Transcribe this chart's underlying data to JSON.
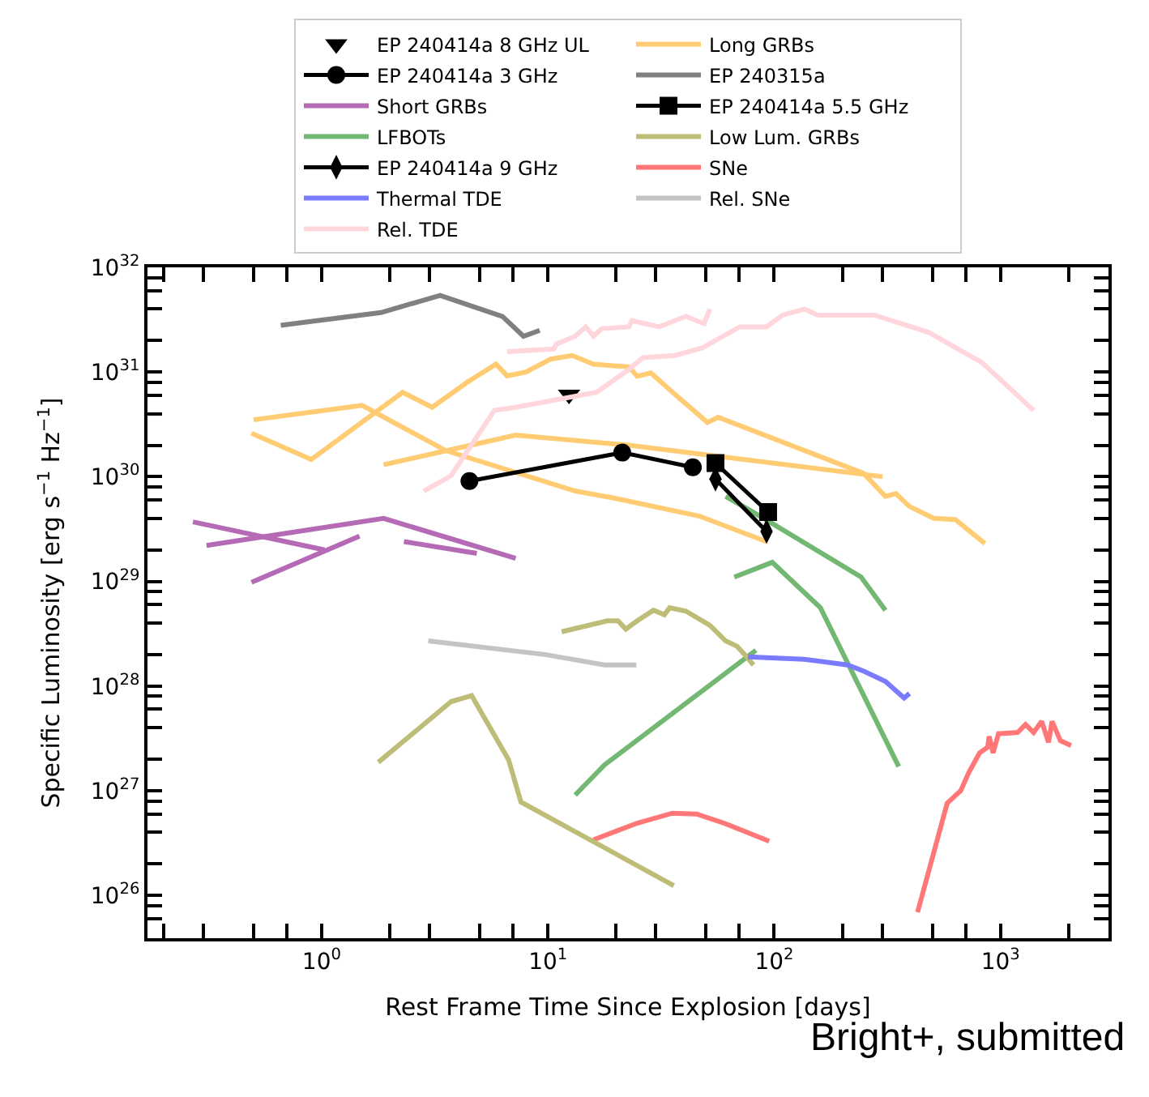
{
  "chart_data": {
    "type": "line",
    "xlabel": "Rest Frame Time Since Explosion [days]",
    "ylabel": "Specific Luminosity [erg s$^{−1}$ Hz$^{−1}$]",
    "log": "xy",
    "grid": false,
    "legend": "top",
    "xlim": [
      0.17,
      3000
    ],
    "ylim": [
      3.9e+25,
      1e+32
    ],
    "xticks": [
      {
        "value": 0.2,
        "label": null
      },
      {
        "value": 0.3,
        "label": null
      },
      {
        "value": 0.5,
        "label": null
      },
      {
        "value": 0.7,
        "label": null
      },
      {
        "value": 2,
        "label": null
      },
      {
        "value": 3,
        "label": null
      },
      {
        "value": 5,
        "label": null
      },
      {
        "value": 7,
        "label": null
      },
      {
        "value": 20,
        "label": null
      },
      {
        "value": 30,
        "label": null
      },
      {
        "value": 50,
        "label": null
      },
      {
        "value": 70,
        "label": null
      },
      {
        "value": 200,
        "label": null
      },
      {
        "value": 300,
        "label": null
      },
      {
        "value": 500,
        "label": null
      },
      {
        "value": 700,
        "label": null
      },
      {
        "value": 2000,
        "label": null
      },
      {
        "value": 3000,
        "label": null
      },
      {
        "value": 1,
        "label": "10$^{0}$"
      },
      {
        "value": 10,
        "label": "10$^{1}$"
      },
      {
        "value": 100,
        "label": "10$^{2}$"
      },
      {
        "value": 1000,
        "label": "10$^{3}$"
      }
    ],
    "yticks": [
      {
        "value": 4e+25,
        "label": null
      },
      {
        "value": 6e+25,
        "label": null
      },
      {
        "value": 8e+25,
        "label": null
      },
      {
        "value": 2e+26,
        "label": null
      },
      {
        "value": 4e+26,
        "label": null
      },
      {
        "value": 6e+26,
        "label": null
      },
      {
        "value": 8e+26,
        "label": null
      },
      {
        "value": 2e+27,
        "label": null
      },
      {
        "value": 4e+27,
        "label": null
      },
      {
        "value": 6e+27,
        "label": null
      },
      {
        "value": 8e+27,
        "label": null
      },
      {
        "value": 2e+28,
        "label": null
      },
      {
        "value": 4e+28,
        "label": null
      },
      {
        "value": 6e+28,
        "label": null
      },
      {
        "value": 8e+28,
        "label": null
      },
      {
        "value": 2e+29,
        "label": null
      },
      {
        "value": 4e+29,
        "label": null
      },
      {
        "value": 6e+29,
        "label": null
      },
      {
        "value": 8e+29,
        "label": null
      },
      {
        "value": 2e+30,
        "label": null
      },
      {
        "value": 4e+30,
        "label": null
      },
      {
        "value": 6e+30,
        "label": null
      },
      {
        "value": 8e+30,
        "label": null
      },
      {
        "value": 2e+31,
        "label": null
      },
      {
        "value": 4e+31,
        "label": null
      },
      {
        "value": 6e+31,
        "label": null
      },
      {
        "value": 8e+31,
        "label": null
      },
      {
        "value": 1e+26,
        "label": "10$^{26}$"
      },
      {
        "value": 1e+27,
        "label": "10$^{27}$"
      },
      {
        "value": 1e+28,
        "label": "10$^{28}$"
      },
      {
        "value": 1e+29,
        "label": "10$^{29}$"
      },
      {
        "value": 1e+30,
        "label": "10$^{30}$"
      },
      {
        "value": 1e+31,
        "label": "10$^{31}$"
      },
      {
        "value": 1e+32,
        "label": "10$^{32}$"
      }
    ],
    "annotations": [
      "Bright+, submitted"
    ],
    "series": [
      {
        "name": "EP 240414a 8 GHz UL",
        "type": "scatter",
        "marker": "triangle",
        "color": "#000000",
        "x": [
          12.4
        ],
        "values": [
          6.1e+30
        ]
      },
      {
        "name": "EP 240315a",
        "color": "#808080",
        "x": [
          0.66,
          1.83,
          3.34,
          6.3,
          7.8,
          9.2
        ],
        "values": [
          2.8e+31,
          3.7e+31,
          5.4e+31,
          3.4e+31,
          2.2e+31,
          2.5e+31
        ]
      },
      {
        "name": "LFBOTs",
        "color": "#72b872",
        "x": [
          13.2,
          17.8,
          83,
          null,
          66.6,
          98,
          160,
          355,
          null,
          61,
          90,
          242,
          310
        ],
        "values": [
          9.1e+26,
          1.77e+27,
          2.2e+28,
          null,
          1.1e+29,
          1.52e+29,
          5.6e+28,
          1.7e+27,
          null,
          6.5e+29,
          4e+29,
          1.1e+29,
          5.3e+28
        ]
      },
      {
        "name": "SNe",
        "color": "#ff7777",
        "x": [
          15.9,
          24.8,
          35.5,
          45.4,
          60,
          95,
          null,
          430,
          581,
          667,
          724,
          808,
          877,
          891,
          927,
          979,
          1190,
          1290,
          1400,
          1520,
          1630,
          1690,
          1840,
          2050
        ],
        "values": [
          3.4e+26,
          4.9e+26,
          6.1e+26,
          6e+26,
          4.9e+26,
          3.3e+26,
          null,
          6.9e+25,
          7.6e+26,
          1e+27,
          1.49e+27,
          2.3e+27,
          2.6e+27,
          3.3e+27,
          2.3e+27,
          3.5e+27,
          3.6e+27,
          4.3e+27,
          3.6e+27,
          4.6e+27,
          2.9e+27,
          4.6e+27,
          3e+27,
          2.7e+27
        ]
      },
      {
        "name": "Rel. SNe",
        "color": "#c4c4c4",
        "x": [
          2.96,
          9.7,
          17.8,
          24.6
        ],
        "values": [
          2.7e+28,
          2e+28,
          1.59e+28,
          1.59e+28
        ]
      },
      {
        "name": "Long GRBs",
        "color": "#ffcc73",
        "x": [
          0.5,
          1.51,
          3.53,
          13.2,
          20,
          46.7,
          92.5,
          null,
          0.49,
          0.9,
          2.28,
          3.08,
          4.4,
          5.9,
          6.6,
          8.0,
          10.3,
          12.8,
          15.9,
          22.8,
          24.8,
          28.5,
          36.5,
          50.7,
          56.5,
          248,
          310,
          345,
          396,
          507,
          631,
          853,
          null,
          1.88,
          7.2,
          22.8,
          301
        ],
        "values": [
          3.5e+30,
          4.8e+30,
          1.78e+30,
          7.3e+29,
          6.2e+29,
          4.2e+29,
          2.4e+29,
          null,
          2.6e+30,
          1.46e+30,
          6.4e+30,
          4.6e+30,
          8e+30,
          1.19e+31,
          9.2e+30,
          1e+31,
          1.33e+31,
          1.44e+31,
          1.19e+31,
          1.12e+31,
          9.1e+30,
          9.8e+30,
          6.1e+30,
          3.3e+30,
          3.7e+30,
          1.08e+30,
          6.5e+29,
          6.9e+29,
          5.2e+29,
          4e+29,
          3.9e+29,
          2.3e+29,
          null,
          1.3e+30,
          2.5e+30,
          2e+30,
          1e+30
        ]
      },
      {
        "name": "Short GRBs",
        "color": "#b46ab4",
        "x": [
          0.27,
          1.03,
          null,
          0.31,
          1.88,
          7.2,
          null,
          0.49,
          1.47,
          null,
          2.31,
          4.85
        ],
        "values": [
          3.7e+29,
          2e+29,
          null,
          2.2e+29,
          4e+29,
          1.66e+29,
          null,
          9.8e+28,
          2.7e+29,
          null,
          2.4e+29,
          1.85e+29
        ]
      },
      {
        "name": "Low Lum. GRBs",
        "color": "#bdbd78",
        "x": [
          1.78,
          3.73,
          4.6,
          6.7,
          7.6,
          36,
          null,
          11.5,
          18.3,
          20.4,
          22.1,
          24.8,
          29.3,
          32.7,
          34.5,
          40.7,
          52,
          61,
          68.5,
          74,
          81
        ],
        "values": [
          1.87e+27,
          7.1e+27,
          8.1e+27,
          1.98e+27,
          7.8e+26,
          1.24e+26,
          null,
          3.3e+28,
          4.2e+28,
          4.2e+28,
          3.5e+28,
          4.2e+28,
          5.3e+28,
          4.8e+28,
          5.6e+28,
          5.2e+28,
          3.8e+28,
          2.7e+28,
          2.4e+28,
          2e+28,
          1.59e+28
        ]
      },
      {
        "name": "Thermal TDE",
        "color": "#7b7bff",
        "x": [
          76.5,
          136,
          211,
          248,
          310,
          375,
          396
        ],
        "values": [
          1.9e+28,
          1.8e+28,
          1.59e+28,
          1.39e+28,
          1.11e+28,
          7.7e+27,
          8.5e+27
        ]
      },
      {
        "name": "Rel. TDE",
        "color": "#ffd6dc",
        "x": [
          2.83,
          3.73,
          5.8,
          7.2,
          16.4,
          22.8,
          26.3,
          36.5,
          48,
          70.5,
          92.5,
          109,
          136,
          156,
          277,
          480,
          830,
          1400,
          null,
          6.6,
          10.6,
          10.9,
          13.2,
          14.7,
          15.9,
          17.3,
          22.8,
          23.5,
          31,
          40.7,
          49,
          52
        ],
        "values": [
          7.3e+29,
          1.02e+30,
          4.3e+30,
          4.6e+30,
          6.4e+30,
          1.06e+31,
          1.37e+31,
          1.44e+31,
          1.7e+31,
          2.7e+31,
          2.7e+31,
          3.5e+31,
          4e+31,
          3.5e+31,
          3.5e+31,
          2.4e+31,
          1.23e+31,
          4.3e+30,
          null,
          1.57e+31,
          1.66e+31,
          1.85e+31,
          2.2e+31,
          2.7e+31,
          2.2e+31,
          2.6e+31,
          2.7e+31,
          3.1e+31,
          2.7e+31,
          3.4e+31,
          2.9e+31,
          4e+31
        ]
      },
      {
        "name": "EP 240414a 3 GHz",
        "marker": "circle",
        "color": "#000000",
        "x": [
          4.5,
          21.3,
          43.7
        ],
        "values": [
          9.1e+29,
          1.7e+30,
          1.23e+30
        ]
      },
      {
        "name": "EP 240414a 5.5 GHz",
        "marker": "square",
        "color": "#000000",
        "x": [
          55,
          94
        ],
        "values": [
          1.35e+30,
          4.6e+29
        ]
      },
      {
        "name": "EP 240414a 9 GHz",
        "marker": "diamond",
        "color": "#000000",
        "x": [
          55,
          92.5
        ],
        "values": [
          9.5e+29,
          3e+29
        ]
      }
    ]
  }
}
